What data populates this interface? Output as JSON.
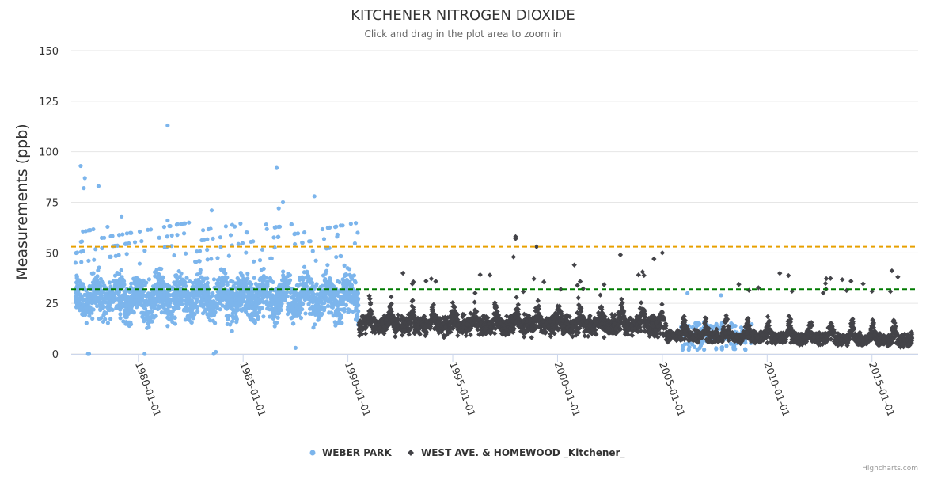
{
  "chart_data": {
    "type": "scatter",
    "title": "KITCHENER NITROGEN DIOXIDE",
    "subtitle": "Click and drag in the plot area to zoom in",
    "ylabel": "Measurements (ppb)",
    "xlabel": "",
    "xlim": [
      1976.8,
      2017.2
    ],
    "ylim": [
      0,
      150
    ],
    "y_ticks": [
      "0",
      "25",
      "50",
      "75",
      "100",
      "125",
      "150"
    ],
    "x_ticks": [
      {
        "label": "1980-01-01",
        "value": 1980.0
      },
      {
        "label": "1985-01-01",
        "value": 1985.0
      },
      {
        "label": "1990-01-01",
        "value": 1990.0
      },
      {
        "label": "1995-01-01",
        "value": 1995.0
      },
      {
        "label": "2000-01-01",
        "value": 2000.0
      },
      {
        "label": "2005-01-01",
        "value": 2005.0
      },
      {
        "label": "2010-01-01",
        "value": 2010.0
      },
      {
        "label": "2015-01-01",
        "value": 2015.0
      }
    ],
    "reference_lines": [
      {
        "value": 53,
        "color": "#e8a000"
      },
      {
        "value": 32,
        "color": "#007a00"
      }
    ],
    "series": [
      {
        "name": "WEBER PARK",
        "color": "#7cb5ec",
        "marker": "circle",
        "start": 1977.0,
        "end": 1990.5,
        "typical_range": [
          10,
          45
        ],
        "notable_points": [
          {
            "x": 1977.25,
            "y": 93
          },
          {
            "x": 1977.4,
            "y": 82
          },
          {
            "x": 1977.45,
            "y": 87
          },
          {
            "x": 1977.6,
            "y": 0
          },
          {
            "x": 1977.65,
            "y": 0
          },
          {
            "x": 1978.1,
            "y": 83
          },
          {
            "x": 1979.2,
            "y": 68
          },
          {
            "x": 1980.3,
            "y": 0
          },
          {
            "x": 1981.4,
            "y": 113
          },
          {
            "x": 1981.4,
            "y": 66
          },
          {
            "x": 1983.5,
            "y": 71
          },
          {
            "x": 1983.6,
            "y": 0
          },
          {
            "x": 1983.7,
            "y": 1
          },
          {
            "x": 1984.6,
            "y": 63
          },
          {
            "x": 1986.1,
            "y": 64
          },
          {
            "x": 1986.6,
            "y": 92
          },
          {
            "x": 1986.9,
            "y": 75
          },
          {
            "x": 1986.7,
            "y": 72
          },
          {
            "x": 1987.5,
            "y": 3
          },
          {
            "x": 1988.4,
            "y": 78
          },
          {
            "x": 1989.5,
            "y": 59
          },
          {
            "x": 2006.2,
            "y": 30
          },
          {
            "x": 2007.8,
            "y": 29
          }
        ]
      },
      {
        "name": "WEST AVE. & HOMEWOOD _Kitchener_",
        "color": "#434348",
        "marker": "diamond",
        "start": 1990.5,
        "end": 2016.9,
        "typical_range": [
          3,
          25
        ],
        "notable_points": [
          {
            "x": 1998.0,
            "y": 58
          },
          {
            "x": 1998.0,
            "y": 57
          },
          {
            "x": 1999.0,
            "y": 53
          },
          {
            "x": 2003.0,
            "y": 49
          },
          {
            "x": 2005.0,
            "y": 50
          },
          {
            "x": 2004.6,
            "y": 47
          },
          {
            "x": 2000.8,
            "y": 44
          },
          {
            "x": 1997.9,
            "y": 48
          },
          {
            "x": 2014.0,
            "y": 36
          },
          {
            "x": 2015.0,
            "y": 31
          }
        ]
      }
    ],
    "legend": {
      "position": "bottom-center"
    }
  },
  "credits": "Highcharts.com"
}
